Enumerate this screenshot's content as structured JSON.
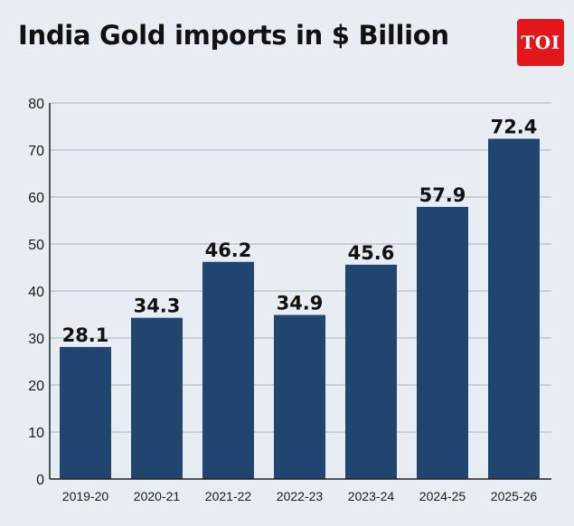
{
  "page": {
    "title": "India Gold imports in $ Billion",
    "logo_text": "TOI"
  },
  "colors": {
    "background": "#e8edf3",
    "bar": "#1f4570",
    "grid": "#a9b1bb",
    "logo": "#e3161b"
  },
  "chart_data": {
    "type": "bar",
    "title": "India Gold imports in $ Billion",
    "xlabel": "",
    "ylabel": "",
    "categories": [
      "2019-20",
      "2020-21",
      "2021-22",
      "2022-23",
      "2023-24",
      "2024-25",
      "2025-26"
    ],
    "values": [
      28.1,
      34.3,
      46.2,
      34.9,
      45.6,
      57.9,
      72.4
    ],
    "value_labels": [
      "28.1",
      "34.3",
      "46.2",
      "34.9",
      "45.6",
      "57.9",
      "72.4"
    ],
    "ylim": [
      0,
      80
    ],
    "yticks": [
      0,
      10,
      20,
      30,
      40,
      50,
      60,
      70,
      80
    ],
    "grid": true,
    "legend": "none"
  }
}
